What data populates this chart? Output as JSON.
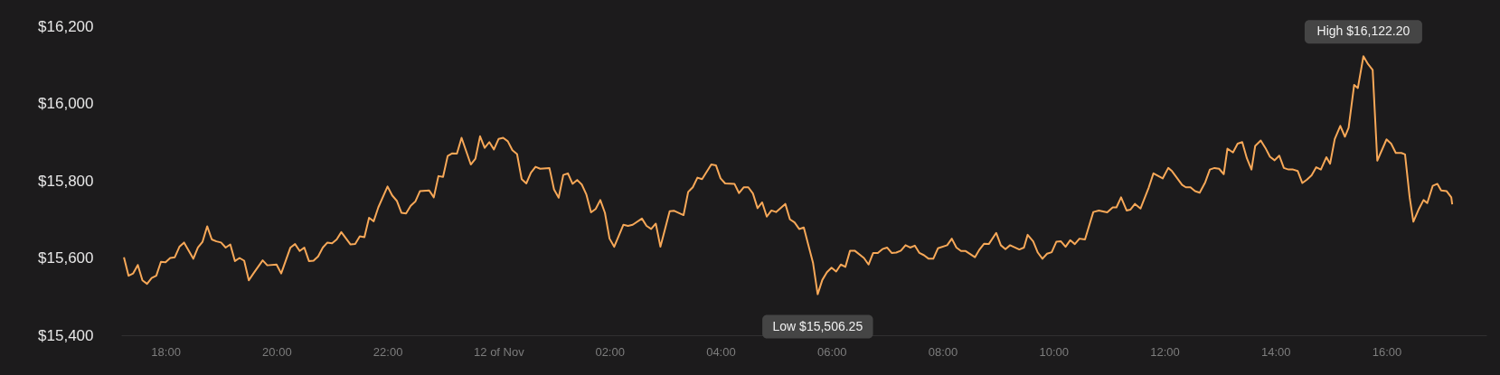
{
  "chart_data": {
    "type": "line",
    "x": [
      "--11-11T17:15",
      "--11-11T17:20",
      "--11-11T17:25",
      "--11-11T17:30",
      "--11-11T17:35",
      "--11-11T17:40",
      "--11-11T17:45",
      "--11-11T17:50",
      "--11-11T17:55",
      "--11-11T18:00",
      "--11-11T18:05",
      "--11-11T18:10",
      "--11-11T18:15",
      "--11-11T18:20",
      "--11-11T18:30",
      "--11-11T18:35",
      "--11-11T18:40",
      "--11-11T18:45",
      "--11-11T18:50",
      "--11-11T18:55",
      "--11-11T19:00",
      "--11-11T19:05",
      "--11-11T19:10",
      "--11-11T19:15",
      "--11-11T19:20",
      "--11-11T19:25",
      "--11-11T19:30",
      "--11-11T19:35",
      "--11-11T19:45",
      "--11-11T19:50",
      "--11-11T20:00",
      "--11-11T20:05",
      "--11-11T20:15",
      "--11-11T20:20",
      "--11-11T20:25",
      "--11-11T20:30",
      "--11-11T20:35",
      "--11-11T20:40",
      "--11-11T20:45",
      "--11-11T20:50",
      "--11-11T20:55",
      "--11-11T21:00",
      "--11-11T21:05",
      "--11-11T21:10",
      "--11-11T21:20",
      "--11-11T21:25",
      "--11-11T21:30",
      "--11-11T21:35",
      "--11-11T21:40",
      "--11-11T21:45",
      "--11-11T21:50",
      "--11-11T22:00",
      "--11-11T22:05",
      "--11-11T22:10",
      "--11-11T22:15",
      "--11-11T22:20",
      "--11-11T22:25",
      "--11-11T22:30",
      "--11-11T22:35",
      "--11-11T22:45",
      "--11-11T22:50",
      "--11-11T22:55",
      "--11-11T23:00",
      "--11-11T23:05",
      "--11-11T23:10",
      "--11-11T23:15",
      "--11-11T23:20",
      "--11-11T23:30",
      "--11-11T23:35",
      "--11-11T23:40",
      "--11-11T23:45",
      "--11-11T23:50",
      "--11-11T23:55",
      "--11-12T00:00",
      "--11-12T00:05",
      "--11-12T00:10",
      "--11-12T00:15",
      "--11-12T00:20",
      "--11-12T00:25",
      "--11-12T00:30",
      "--11-12T00:35",
      "--11-12T00:40",
      "--11-12T00:45",
      "--11-12T00:55",
      "--11-12T01:00",
      "--11-12T01:05",
      "--11-12T01:10",
      "--11-12T01:15",
      "--11-12T01:20",
      "--11-12T01:25",
      "--11-12T01:30",
      "--11-12T01:35",
      "--11-12T01:40",
      "--11-12T01:45",
      "--11-12T01:50",
      "--11-12T01:55",
      "--11-12T02:00",
      "--11-12T02:05",
      "--11-12T02:15",
      "--11-12T02:20",
      "--11-12T02:25",
      "--11-12T02:35",
      "--11-12T02:40",
      "--11-12T02:45",
      "--11-12T02:50",
      "--11-12T02:55",
      "--11-12T03:05",
      "--11-12T03:10",
      "--11-12T03:20",
      "--11-12T03:25",
      "--11-12T03:30",
      "--11-12T03:35",
      "--11-12T03:40",
      "--11-12T03:50",
      "--11-12T03:55",
      "--11-12T04:00",
      "--11-12T04:05",
      "--11-12T04:15",
      "--11-12T04:20",
      "--11-12T04:25",
      "--11-12T04:30",
      "--11-12T04:35",
      "--11-12T04:40",
      "--11-12T04:45",
      "--11-12T04:50",
      "--11-12T04:55",
      "--11-12T05:00",
      "--11-12T05:10",
      "--11-12T05:15",
      "--11-12T05:20",
      "--11-12T05:25",
      "--11-12T05:30",
      "--11-12T05:35",
      "--11-12T05:40",
      "--11-12T05:45",
      "--11-12T05:50",
      "--11-12T05:55",
      "--11-12T06:00",
      "--11-12T06:05",
      "--11-12T06:10",
      "--11-12T06:15",
      "--11-12T06:20",
      "--11-12T06:25",
      "--11-12T06:35",
      "--11-12T06:40",
      "--11-12T06:45",
      "--11-12T06:50",
      "--11-12T06:55",
      "--11-12T07:00",
      "--11-12T07:05",
      "--11-12T07:10",
      "--11-12T07:15",
      "--11-12T07:20",
      "--11-12T07:25",
      "--11-12T07:30",
      "--11-12T07:35",
      "--11-12T07:40",
      "--11-12T07:45",
      "--11-12T07:50",
      "--11-12T07:55",
      "--11-12T08:05",
      "--11-12T08:10",
      "--11-12T08:15",
      "--11-12T08:20",
      "--11-12T08:25",
      "--11-12T08:35",
      "--11-12T08:40",
      "--11-12T08:45",
      "--11-12T08:50",
      "--11-12T08:58",
      "--11-12T09:03",
      "--11-12T09:08",
      "--11-12T09:13",
      "--11-12T09:23",
      "--11-12T09:28",
      "--11-12T09:32",
      "--11-12T09:38",
      "--11-12T09:43",
      "--11-12T09:48",
      "--11-12T09:53",
      "--11-12T09:58",
      "--11-12T10:03",
      "--11-12T10:08",
      "--11-12T10:13",
      "--11-12T10:18",
      "--11-12T10:23",
      "--11-12T10:28",
      "--11-12T10:34",
      "--11-12T10:43",
      "--11-12T10:49",
      "--11-12T10:58",
      "--11-12T11:04",
      "--11-12T11:08",
      "--11-12T11:13",
      "--11-12T11:19",
      "--11-12T11:23",
      "--11-12T11:28",
      "--11-12T11:34",
      "--11-12T11:43",
      "--11-12T11:48",
      "--11-12T11:58",
      "--11-12T12:04",
      "--11-12T12:08",
      "--11-12T12:19",
      "--11-12T12:23",
      "--11-12T12:28",
      "--11-12T12:33",
      "--11-12T12:38",
      "--11-12T12:44",
      "--11-12T12:49",
      "--11-12T12:54",
      "--11-12T12:59",
      "--11-12T13:04",
      "--11-12T13:08",
      "--11-12T13:14",
      "--11-12T13:19",
      "--11-12T13:24",
      "--11-12T13:29",
      "--11-12T13:34",
      "--11-12T13:38",
      "--11-12T13:44",
      "--11-12T13:49",
      "--11-12T13:54",
      "--11-12T13:59",
      "--11-12T14:04",
      "--11-12T14:09",
      "--11-12T14:14",
      "--11-12T14:19",
      "--11-12T14:24",
      "--11-12T14:29",
      "--11-12T14:34",
      "--11-12T14:39",
      "--11-12T14:44",
      "--11-12T14:49",
      "--11-12T14:55",
      "--11-12T14:59",
      "--11-12T15:04",
      "--11-12T15:10",
      "--11-12T15:15",
      "--11-12T15:19",
      "--11-12T15:25",
      "--11-12T15:29",
      "--11-12T15:35",
      "--11-12T15:40",
      "--11-12T15:45",
      "--11-12T15:50",
      "--11-12T16:00",
      "--11-12T16:05",
      "--11-12T16:10",
      "--11-12T16:16",
      "--11-12T16:20",
      "--11-12T16:25",
      "--11-12T16:29",
      "--11-12T16:35",
      "--11-12T16:40",
      "--11-12T16:44",
      "--11-12T16:50",
      "--11-12T16:55",
      "--11-12T16:59",
      "--11-12T17:05",
      "--11-12T17:10",
      "--11-12T17:11"
    ],
    "series": [
      {
        "color": "#f7a858",
        "values": [
          15602,
          15554,
          15560,
          15582,
          15542,
          15533,
          15548,
          15554,
          15590,
          15589,
          15600,
          15602,
          15629,
          15640,
          15598,
          15627,
          15642,
          15682,
          15648,
          15643,
          15640,
          15627,
          15635,
          15592,
          15600,
          15593,
          15542,
          15560,
          15594,
          15581,
          15583,
          15560,
          15627,
          15636,
          15618,
          15627,
          15592,
          15593,
          15604,
          15627,
          15640,
          15638,
          15648,
          15667,
          15635,
          15636,
          15656,
          15654,
          15704,
          15695,
          15731,
          15785,
          15762,
          15748,
          15717,
          15715,
          15735,
          15746,
          15773,
          15775,
          15757,
          15812,
          15810,
          15864,
          15871,
          15870,
          15911,
          15842,
          15857,
          15915,
          15885,
          15900,
          15881,
          15908,
          15911,
          15902,
          15879,
          15869,
          15804,
          15793,
          15821,
          15836,
          15831,
          15833,
          15777,
          15756,
          15815,
          15819,
          15792,
          15802,
          15790,
          15764,
          15718,
          15727,
          15750,
          15717,
          15650,
          15629,
          15686,
          15683,
          15686,
          15702,
          15683,
          15675,
          15689,
          15629,
          15721,
          15722,
          15711,
          15771,
          15783,
          15808,
          15804,
          15842,
          15840,
          15806,
          15793,
          15792,
          15768,
          15783,
          15783,
          15767,
          15729,
          15744,
          15707,
          15723,
          15719,
          15740,
          15700,
          15692,
          15675,
          15679,
          15633,
          15587,
          15506.25,
          15543,
          15563,
          15575,
          15565,
          15583,
          15577,
          15619,
          15619,
          15600,
          15583,
          15613,
          15613,
          15623,
          15627,
          15613,
          15614,
          15619,
          15633,
          15627,
          15632,
          15613,
          15607,
          15598,
          15598,
          15625,
          15633,
          15650,
          15627,
          15618,
          15618,
          15602,
          15622,
          15637,
          15636,
          15665,
          15633,
          15623,
          15633,
          15622,
          15627,
          15660,
          15643,
          15614,
          15598,
          15611,
          15615,
          15642,
          15643,
          15629,
          15646,
          15636,
          15650,
          15648,
          15719,
          15723,
          15718,
          15731,
          15731,
          15757,
          15723,
          15725,
          15740,
          15728,
          15783,
          15819,
          15806,
          15833,
          15825,
          15789,
          15783,
          15783,
          15773,
          15769,
          15796,
          15829,
          15833,
          15831,
          15817,
          15883,
          15873,
          15896,
          15900,
          15858,
          15829,
          15890,
          15904,
          15885,
          15862,
          15853,
          15865,
          15833,
          15829,
          15829,
          15825,
          15794,
          15803,
          15814,
          15835,
          15829,
          15861,
          15844,
          15908,
          15942,
          15914,
          15937,
          16048,
          16040,
          16122.2,
          16102,
          16087,
          15852,
          15907,
          15896,
          15872,
          15872,
          15868,
          15757,
          15694,
          15727,
          15750,
          15742,
          15787,
          15792,
          15775,
          15773,
          15757,
          15739
        ]
      }
    ],
    "xlim": [
      "--11-11T17:12",
      "--11-12T17:48"
    ],
    "xticks": [
      {
        "value": "--11-11T18:00",
        "label": "18:00"
      },
      {
        "value": "--11-11T20:00",
        "label": "20:00"
      },
      {
        "value": "--11-11T22:00",
        "label": "22:00"
      },
      {
        "value": "--11-12T00:00",
        "label": "12 of Nov"
      },
      {
        "value": "--11-12T02:00",
        "label": "02:00"
      },
      {
        "value": "--11-12T04:00",
        "label": "04:00"
      },
      {
        "value": "--11-12T06:00",
        "label": "06:00"
      },
      {
        "value": "--11-12T08:00",
        "label": "08:00"
      },
      {
        "value": "--11-12T10:00",
        "label": "10:00"
      },
      {
        "value": "--11-12T12:00",
        "label": "12:00"
      },
      {
        "value": "--11-12T14:00",
        "label": "14:00"
      },
      {
        "value": "--11-12T16:00",
        "label": "16:00"
      }
    ],
    "ylim": [
      15400,
      16200
    ],
    "yticks": [
      {
        "value": 15400,
        "label": "$15,400"
      },
      {
        "value": 15600,
        "label": "$15,600"
      },
      {
        "value": 15800,
        "label": "$15,800"
      },
      {
        "value": 16000,
        "label": "$16,000"
      },
      {
        "value": 16200,
        "label": "$16,200"
      }
    ],
    "annotations": [
      {
        "text": "High $16,122.20",
        "x": "--11-12T15:35",
        "y": 16122.2
      },
      {
        "text": "Low $15,506.25",
        "x": "--11-12T05:45",
        "y": 15506.25
      }
    ],
    "grid": false,
    "marker": "none",
    "line_style": "solid"
  }
}
